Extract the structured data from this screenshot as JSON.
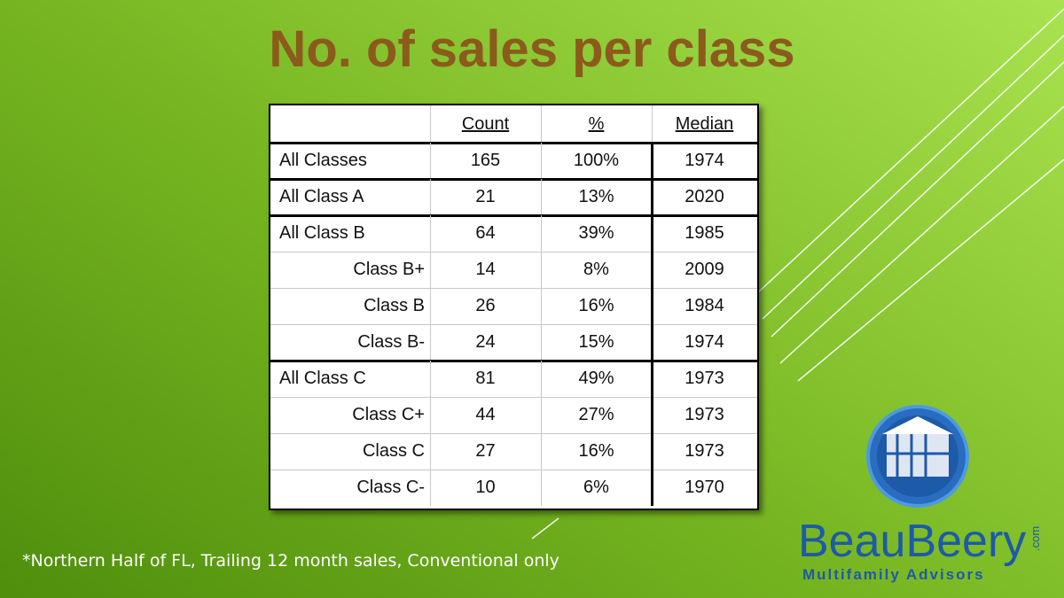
{
  "title": "No. of sales per class",
  "table": {
    "header": [
      "Count",
      "%",
      "Median"
    ],
    "groups": [
      [
        [
          "All Classes",
          "165",
          "100%",
          "1974"
        ]
      ],
      [
        [
          "All Class A",
          "21",
          "13%",
          "2020"
        ]
      ],
      [
        [
          "All Class B",
          "64",
          "39%",
          "1985"
        ],
        [
          "Class B+",
          "14",
          "8%",
          "2009"
        ],
        [
          "Class B",
          "26",
          "16%",
          "1984"
        ],
        [
          "Class B-",
          "24",
          "15%",
          "1974"
        ]
      ],
      [
        [
          "All Class C",
          "81",
          "49%",
          "1973"
        ],
        [
          "Class C+",
          "44",
          "27%",
          "1973"
        ],
        [
          "Class C",
          "27",
          "16%",
          "1973"
        ],
        [
          "Class C-",
          "10",
          "6%",
          "1970"
        ]
      ]
    ]
  },
  "footnote": "*Northern Half of FL, Trailing 12 month sales, Conventional only",
  "logo": {
    "name": "BeauBeery",
    "domain": ".com",
    "tagline": "Multifamily Advisors"
  }
}
